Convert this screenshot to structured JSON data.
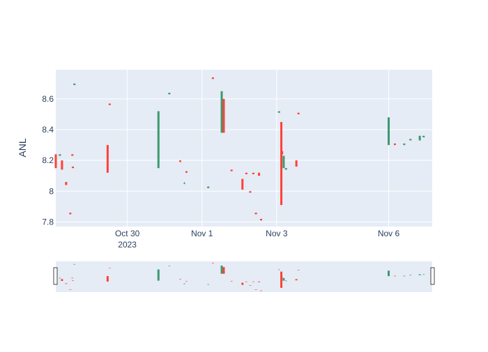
{
  "colors": {
    "plot_bg": "#e5ecf6",
    "grid": "#ffffff",
    "increasing": "#3d9970",
    "decreasing": "#ff4136",
    "text": "#2a3f5f",
    "page_bg": "#ffffff"
  },
  "chart_data": {
    "type": "candlestick",
    "title": "",
    "ylabel": "ANL",
    "xlabel": "",
    "x_range": [
      "2023-10-28 02:00",
      "2023-11-07 04:00"
    ],
    "y_range": [
      7.77,
      8.79
    ],
    "y_ticks": [
      7.8,
      8,
      8.2,
      8.4,
      8.6
    ],
    "y_tick_labels": [
      "7.8",
      "8",
      "8.2",
      "8.4",
      "8.6"
    ],
    "x_ticks": [
      {
        "t": "2023-10-30 00:00",
        "label": "Oct 30",
        "sub": "2023"
      },
      {
        "t": "2023-11-01 00:00",
        "label": "Nov 1",
        "sub": ""
      },
      {
        "t": "2023-11-03 00:00",
        "label": "Nov 3",
        "sub": ""
      },
      {
        "t": "2023-11-06 00:00",
        "label": "Nov 6",
        "sub": ""
      }
    ],
    "grid": true,
    "legend": "none",
    "rangeslider": true,
    "candles": [
      {
        "t": "2023-10-28 02:00",
        "open": 8.24,
        "high": 8.24,
        "low": 8.15,
        "close": 8.15
      },
      {
        "t": "2023-10-28 04:40",
        "open": 8.23,
        "high": 8.24,
        "low": 8.23,
        "close": 8.24
      },
      {
        "t": "2023-10-28 06:00",
        "open": 8.2,
        "high": 8.2,
        "low": 8.14,
        "close": 8.14
      },
      {
        "t": "2023-10-28 08:40",
        "open": 8.06,
        "high": 8.06,
        "low": 8.04,
        "close": 8.04
      },
      {
        "t": "2023-10-28 11:20",
        "open": 7.86,
        "high": 7.86,
        "low": 7.85,
        "close": 7.85
      },
      {
        "t": "2023-10-28 12:40",
        "open": 8.24,
        "high": 8.24,
        "low": 8.23,
        "close": 8.23
      },
      {
        "t": "2023-10-28 14:00",
        "open": 8.69,
        "high": 8.7,
        "low": 8.69,
        "close": 8.7
      },
      {
        "t": "2023-10-28 13:00",
        "open": 8.16,
        "high": 8.16,
        "low": 8.15,
        "close": 8.15
      },
      {
        "t": "2023-10-29 11:20",
        "open": 8.3,
        "high": 8.3,
        "low": 8.12,
        "close": 8.12
      },
      {
        "t": "2023-10-29 12:40",
        "open": 8.57,
        "high": 8.57,
        "low": 8.56,
        "close": 8.56
      },
      {
        "t": "2023-10-30 20:00",
        "open": 8.15,
        "high": 8.52,
        "low": 8.15,
        "close": 8.52
      },
      {
        "t": "2023-10-31 03:00",
        "open": 8.63,
        "high": 8.64,
        "low": 8.63,
        "close": 8.64
      },
      {
        "t": "2023-10-31 10:00",
        "open": 8.2,
        "high": 8.2,
        "low": 8.19,
        "close": 8.19
      },
      {
        "t": "2023-10-31 12:40",
        "open": 8.05,
        "high": 8.06,
        "low": 8.05,
        "close": 8.05
      },
      {
        "t": "2023-10-31 14:00",
        "open": 8.13,
        "high": 8.13,
        "low": 8.12,
        "close": 8.12
      },
      {
        "t": "2023-11-01 04:00",
        "open": 8.02,
        "high": 8.03,
        "low": 8.02,
        "close": 8.03
      },
      {
        "t": "2023-11-01 07:00",
        "open": 8.74,
        "high": 8.74,
        "low": 8.73,
        "close": 8.73
      },
      {
        "t": "2023-11-01 12:40",
        "open": 8.38,
        "high": 8.65,
        "low": 8.38,
        "close": 8.65
      },
      {
        "t": "2023-11-01 14:00",
        "open": 8.6,
        "high": 8.6,
        "low": 8.38,
        "close": 8.38
      },
      {
        "t": "2023-11-01 19:00",
        "open": 8.14,
        "high": 8.14,
        "low": 8.13,
        "close": 8.13
      },
      {
        "t": "2023-11-02 02:00",
        "open": 8.08,
        "high": 8.08,
        "low": 8.01,
        "close": 8.01
      },
      {
        "t": "2023-11-02 04:30",
        "open": 8.12,
        "high": 8.12,
        "low": 8.11,
        "close": 8.11
      },
      {
        "t": "2023-11-02 07:00",
        "open": 8.0,
        "high": 8.0,
        "low": 7.99,
        "close": 7.99
      },
      {
        "t": "2023-11-02 09:00",
        "open": 8.12,
        "high": 8.12,
        "low": 8.11,
        "close": 8.11
      },
      {
        "t": "2023-11-02 10:40",
        "open": 7.86,
        "high": 7.86,
        "low": 7.85,
        "close": 7.85
      },
      {
        "t": "2023-11-02 12:40",
        "open": 8.12,
        "high": 8.12,
        "low": 8.1,
        "close": 8.1
      },
      {
        "t": "2023-11-02 14:00",
        "open": 7.82,
        "high": 7.82,
        "low": 7.81,
        "close": 7.81
      },
      {
        "t": "2023-11-03 01:30",
        "open": 8.51,
        "high": 8.52,
        "low": 8.51,
        "close": 8.52
      },
      {
        "t": "2023-11-03 03:00",
        "open": 8.45,
        "high": 8.45,
        "low": 7.91,
        "close": 7.91
      },
      {
        "t": "2023-11-03 03:30",
        "open": 8.26,
        "high": 8.26,
        "low": 8.24,
        "close": 8.24
      },
      {
        "t": "2023-11-03 04:30",
        "open": 8.15,
        "high": 8.23,
        "low": 8.15,
        "close": 8.23
      },
      {
        "t": "2023-11-03 06:00",
        "open": 8.14,
        "high": 8.15,
        "low": 8.14,
        "close": 8.15
      },
      {
        "t": "2023-11-03 12:40",
        "open": 8.2,
        "high": 8.2,
        "low": 8.16,
        "close": 8.16
      },
      {
        "t": "2023-11-03 14:00",
        "open": 8.51,
        "high": 8.51,
        "low": 8.5,
        "close": 8.5
      },
      {
        "t": "2023-11-06 00:00",
        "open": 8.3,
        "high": 8.48,
        "low": 8.3,
        "close": 8.48
      },
      {
        "t": "2023-11-06 04:00",
        "open": 8.31,
        "high": 8.31,
        "low": 8.3,
        "close": 8.3
      },
      {
        "t": "2023-11-06 10:00",
        "open": 8.3,
        "high": 8.31,
        "low": 8.3,
        "close": 8.31
      },
      {
        "t": "2023-11-06 14:00",
        "open": 8.33,
        "high": 8.34,
        "low": 8.33,
        "close": 8.34
      },
      {
        "t": "2023-11-06 20:00",
        "open": 8.33,
        "high": 8.36,
        "low": 8.33,
        "close": 8.36
      },
      {
        "t": "2023-11-06 22:30",
        "open": 8.35,
        "high": 8.36,
        "low": 8.35,
        "close": 8.36
      }
    ]
  }
}
